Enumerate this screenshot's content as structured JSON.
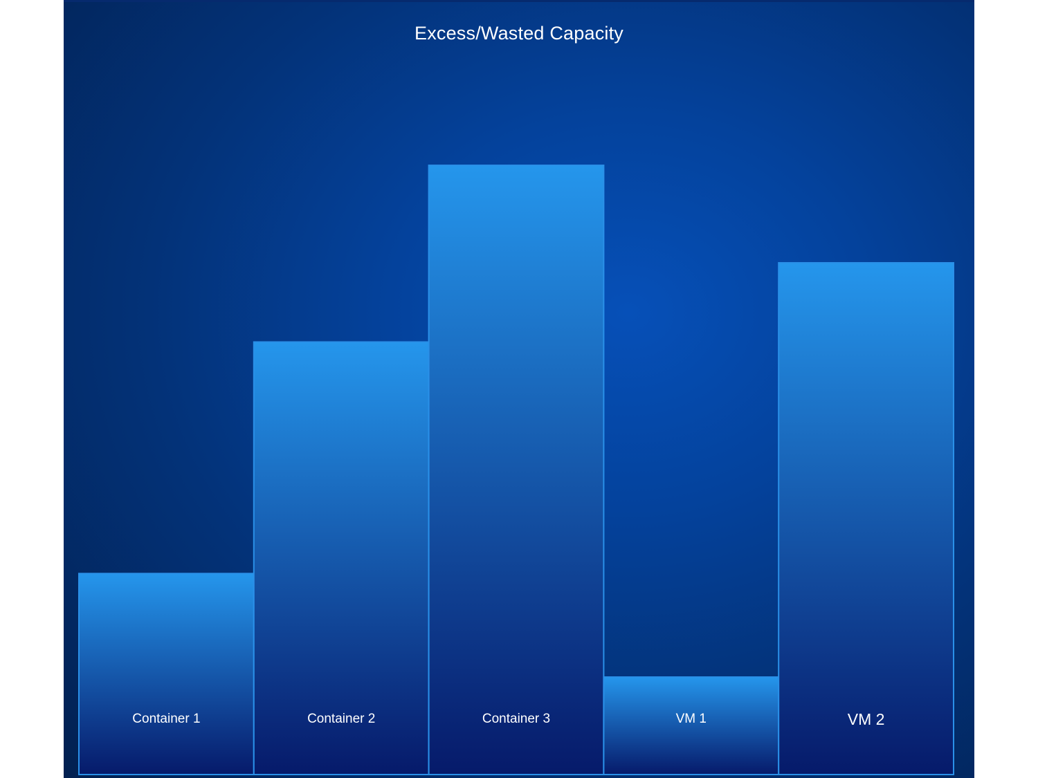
{
  "chart_data": {
    "type": "bar",
    "title": "Excess/Wasted Capacity",
    "xlabel": "",
    "ylabel": "",
    "ylim": [
      0,
      100
    ],
    "grid": false,
    "legend": "none",
    "categories": [
      "Container 1",
      "Container 2",
      "Container 3",
      "VM 1",
      "VM 2"
    ],
    "values": [
      33,
      71,
      100,
      16,
      84
    ],
    "colors": {
      "bar_top": "#2596ec",
      "bar_bottom": "#061a6a",
      "bar_border": "#2a90e8",
      "label": "#ffffff"
    }
  }
}
